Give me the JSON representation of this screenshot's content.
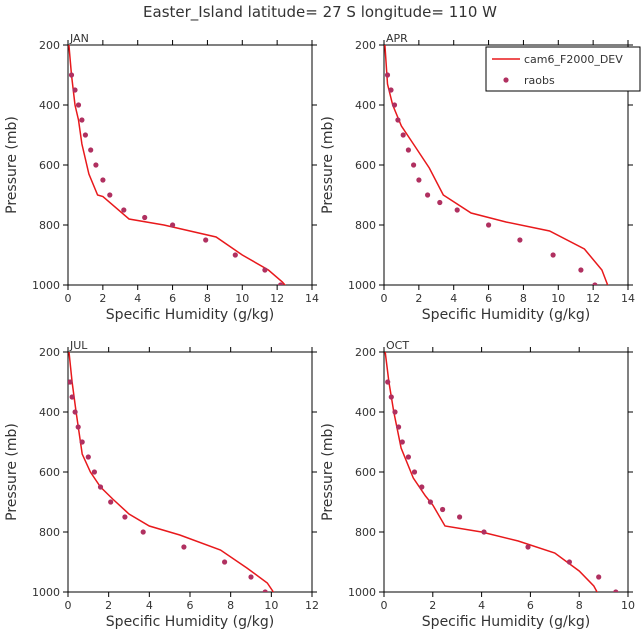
{
  "title": "Easter_Island  latitude= 27 S longitude= 110 W",
  "colors": {
    "model": "#e8191c",
    "obs": "#b03060",
    "axis": "#000000",
    "text": "#333333"
  },
  "legend": {
    "placement": "top-right",
    "model_label": "cam6_F2000_DEV",
    "obs_label": "raobs"
  },
  "chart_data": [
    {
      "type": "line",
      "panel": "JAN",
      "xlabel": "Specific Humidity (g/kg)",
      "ylabel": "Pressure (mb)",
      "xlim": [
        0,
        14
      ],
      "ylim": [
        1000,
        200
      ],
      "y_inverted": true,
      "xticks": [
        "0",
        "2",
        "4",
        "6",
        "8",
        "10",
        "12",
        "14"
      ],
      "yticks": [
        "200",
        "400",
        "600",
        "800",
        "1000"
      ],
      "series": [
        {
          "name": "cam6_F2000_DEV",
          "kind": "line",
          "x": [
            0.05,
            0.2,
            0.4,
            0.6,
            0.8,
            1.2,
            1.7,
            2.0,
            3.5,
            5.5,
            8.5,
            10.0,
            11.5,
            12.3,
            12.6
          ],
          "y": [
            200,
            300,
            400,
            450,
            530,
            630,
            700,
            705,
            780,
            800,
            840,
            900,
            950,
            990,
            1010
          ]
        },
        {
          "name": "raobs",
          "kind": "points",
          "x": [
            0.2,
            0.4,
            0.6,
            0.8,
            1.0,
            1.3,
            1.6,
            2.0,
            2.4,
            3.2,
            4.4,
            6.0,
            7.9,
            9.6,
            11.3,
            12.2
          ],
          "y": [
            300,
            350,
            400,
            450,
            500,
            550,
            600,
            650,
            700,
            750,
            775,
            800,
            850,
            900,
            950,
            1000
          ]
        }
      ]
    },
    {
      "type": "line",
      "panel": "APR",
      "xlabel": "Specific Humidity (g/kg)",
      "ylabel": "Pressure (mb)",
      "xlim": [
        0,
        14
      ],
      "ylim": [
        1000,
        200
      ],
      "y_inverted": true,
      "xticks": [
        "0",
        "2",
        "4",
        "6",
        "8",
        "10",
        "12",
        "14"
      ],
      "yticks": [
        "200",
        "400",
        "600",
        "800",
        "1000"
      ],
      "series": [
        {
          "name": "cam6_F2000_DEV",
          "kind": "line",
          "x": [
            0.05,
            0.2,
            0.5,
            1.0,
            1.8,
            2.6,
            3.4,
            5.0,
            7.0,
            9.5,
            11.5,
            12.5,
            12.9
          ],
          "y": [
            200,
            330,
            400,
            470,
            540,
            610,
            700,
            760,
            790,
            820,
            880,
            950,
            1010
          ]
        },
        {
          "name": "raobs",
          "kind": "points",
          "x": [
            0.2,
            0.4,
            0.6,
            0.8,
            1.1,
            1.4,
            1.7,
            2.0,
            2.5,
            3.2,
            4.2,
            6.0,
            7.8,
            9.7,
            11.3,
            12.1
          ],
          "y": [
            300,
            350,
            400,
            450,
            500,
            550,
            600,
            650,
            700,
            725,
            750,
            800,
            850,
            900,
            950,
            1000
          ]
        }
      ]
    },
    {
      "type": "line",
      "panel": "JUL",
      "xlabel": "Specific Humidity (g/kg)",
      "ylabel": "Pressure (mb)",
      "xlim": [
        0,
        12
      ],
      "ylim": [
        1000,
        200
      ],
      "y_inverted": true,
      "xticks": [
        "0",
        "2",
        "4",
        "6",
        "8",
        "10",
        "12"
      ],
      "yticks": [
        "200",
        "400",
        "600",
        "800",
        "1000"
      ],
      "series": [
        {
          "name": "cam6_F2000_DEV",
          "kind": "line",
          "x": [
            0.05,
            0.2,
            0.4,
            0.7,
            1.1,
            1.6,
            2.2,
            3.0,
            4.0,
            5.5,
            7.5,
            8.8,
            9.8,
            10.3
          ],
          "y": [
            200,
            300,
            400,
            540,
            600,
            650,
            690,
            740,
            780,
            810,
            860,
            920,
            970,
            1020
          ]
        },
        {
          "name": "raobs",
          "kind": "points",
          "x": [
            0.1,
            0.2,
            0.35,
            0.5,
            0.7,
            1.0,
            1.3,
            1.6,
            2.1,
            2.8,
            3.7,
            5.7,
            7.7,
            9.0,
            9.7
          ],
          "y": [
            300,
            350,
            400,
            450,
            500,
            550,
            600,
            650,
            700,
            750,
            800,
            850,
            900,
            950,
            1000
          ]
        }
      ]
    },
    {
      "type": "line",
      "panel": "OCT",
      "xlabel": "Specific Humidity (g/kg)",
      "ylabel": "Pressure (mb)",
      "xlim": [
        0,
        10
      ],
      "ylim": [
        1000,
        200
      ],
      "y_inverted": true,
      "xticks": [
        "0",
        "2",
        "4",
        "6",
        "8",
        "10"
      ],
      "yticks": [
        "200",
        "400",
        "600",
        "800",
        "1000"
      ],
      "series": [
        {
          "name": "cam6_F2000_DEV",
          "kind": "line",
          "x": [
            0.05,
            0.2,
            0.4,
            0.7,
            1.2,
            1.7,
            2.0,
            2.5,
            4.0,
            5.5,
            7.0,
            8.0,
            8.6,
            8.8
          ],
          "y": [
            200,
            300,
            400,
            520,
            620,
            680,
            710,
            780,
            800,
            830,
            870,
            930,
            980,
            1010
          ]
        },
        {
          "name": "raobs",
          "kind": "points",
          "x": [
            0.15,
            0.3,
            0.45,
            0.6,
            0.75,
            1.0,
            1.25,
            1.55,
            1.9,
            2.4,
            3.1,
            4.1,
            5.9,
            7.6,
            8.8,
            9.5
          ],
          "y": [
            300,
            350,
            400,
            450,
            500,
            550,
            600,
            650,
            700,
            725,
            750,
            800,
            850,
            900,
            950,
            1000
          ]
        }
      ]
    }
  ]
}
